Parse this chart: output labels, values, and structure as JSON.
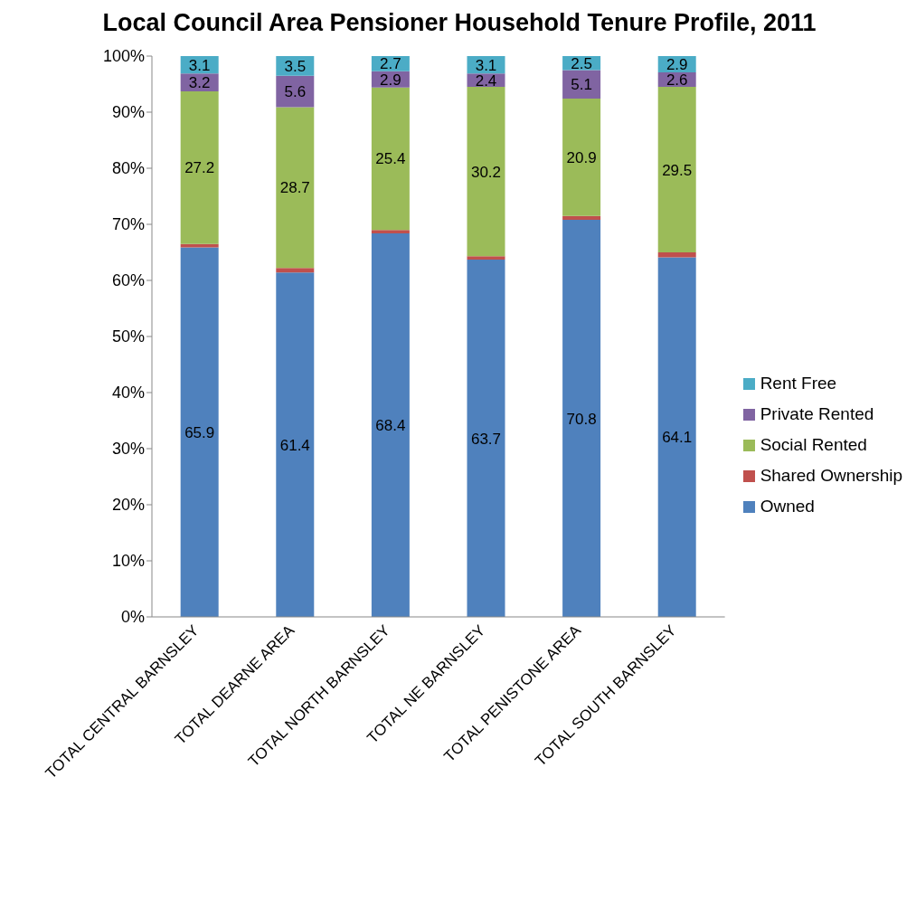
{
  "chart_data": {
    "type": "bar",
    "stacked": true,
    "title": "Local Council Area Pensioner Household Tenure Profile, 2011",
    "categories": [
      "TOTAL CENTRAL BARNSLEY",
      "TOTAL DEARNE AREA",
      "TOTAL NORTH BARNSLEY",
      "TOTAL NE BARNSLEY",
      "TOTAL PENISTONE AREA",
      "TOTAL SOUTH BARNSLEY"
    ],
    "series": [
      {
        "name": "Owned",
        "color": "#4f81bd",
        "values": [
          65.9,
          61.4,
          68.4,
          63.7,
          70.8,
          64.1
        ],
        "value_labels": [
          "65.9",
          "61.4",
          "68.4",
          "63.7",
          "70.8",
          "64.1"
        ]
      },
      {
        "name": "Shared Ownership",
        "color": "#c0504d",
        "values": [
          0.6,
          0.8,
          0.6,
          0.6,
          0.7,
          0.9
        ],
        "value_labels": [
          null,
          null,
          null,
          null,
          null,
          null
        ]
      },
      {
        "name": "Social Rented",
        "color": "#9bbb59",
        "values": [
          27.2,
          28.7,
          25.4,
          30.2,
          20.9,
          29.5
        ],
        "value_labels": [
          "27.2",
          "28.7",
          "25.4",
          "30.2",
          "20.9",
          "29.5"
        ]
      },
      {
        "name": "Private Rented",
        "color": "#8064a2",
        "values": [
          3.2,
          5.6,
          2.9,
          2.4,
          5.1,
          2.6
        ],
        "value_labels": [
          "3.2",
          "5.6",
          "2.9",
          "2.4",
          "5.1",
          "2.6"
        ]
      },
      {
        "name": "Rent Free",
        "color": "#4bacc6",
        "values": [
          3.1,
          3.5,
          2.7,
          3.1,
          2.5,
          2.9
        ],
        "value_labels": [
          "3.1",
          "3.5",
          "2.7",
          "3.1",
          "2.5",
          "2.9"
        ]
      }
    ],
    "ylim": [
      0,
      100
    ],
    "yticks": [
      {
        "value": 0,
        "label": "0%"
      },
      {
        "value": 10,
        "label": "10%"
      },
      {
        "value": 20,
        "label": "20%"
      },
      {
        "value": 30,
        "label": "30%"
      },
      {
        "value": 40,
        "label": "40%"
      },
      {
        "value": 50,
        "label": "50%"
      },
      {
        "value": 60,
        "label": "60%"
      },
      {
        "value": 70,
        "label": "70%"
      },
      {
        "value": 80,
        "label": "80%"
      },
      {
        "value": 90,
        "label": "90%"
      },
      {
        "value": 100,
        "label": "100%"
      }
    ],
    "grid": false,
    "legend": "right"
  }
}
